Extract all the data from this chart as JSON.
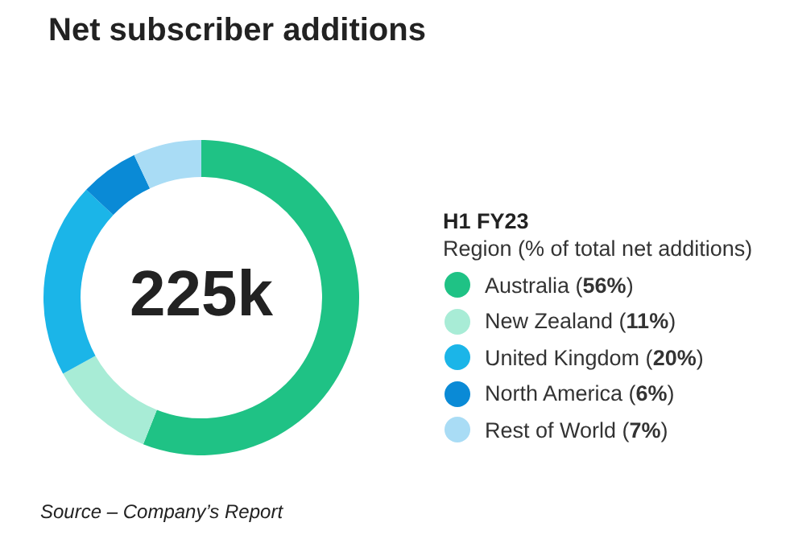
{
  "chart_data": {
    "type": "donut",
    "title": "Net subscriber additions",
    "legend_title": "H1 FY23",
    "categories": [
      "Australia (56%)",
      "New Zealand (11%)",
      "United Kingdom (20%)",
      "North America (6%)",
      "Rest of World (7%)"
    ],
    "values": [
      56,
      11,
      20,
      6,
      7
    ],
    "colors": [
      "#1fc285",
      "#a8ecd6",
      "#1bb5e8",
      "#0a8ad6",
      "#a9dcf5"
    ],
    "legend": "right",
    "annotations": [
      "225k",
      "Region (% of total net additions)",
      "Source – Company’s Report"
    ]
  }
}
